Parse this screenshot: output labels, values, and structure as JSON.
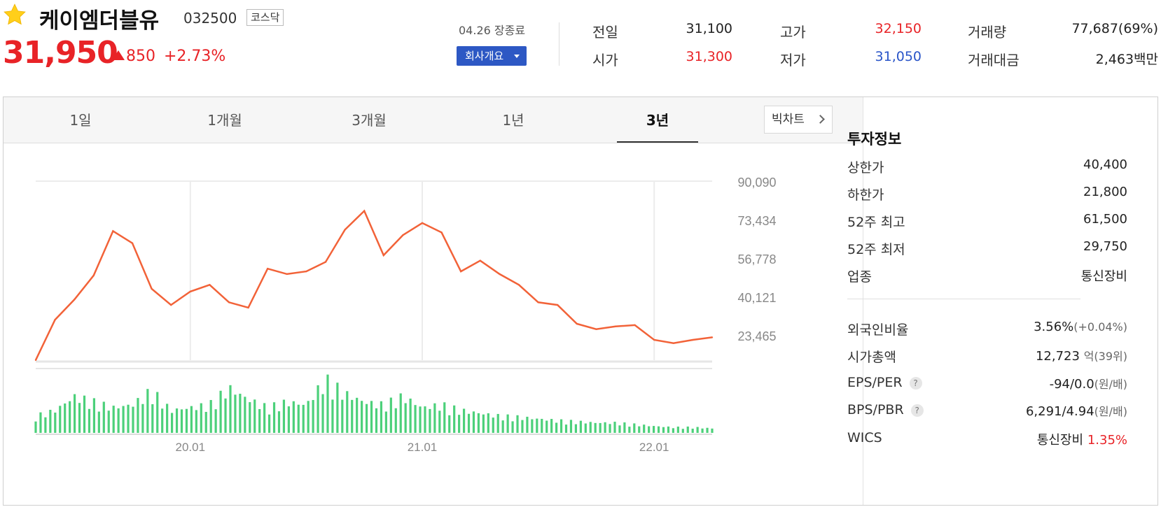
{
  "stock": {
    "name": "케이엠더블유",
    "code": "032500",
    "market": "코스닥",
    "price": "31,950",
    "change": "850",
    "change_pct": "+2.73%",
    "date": "04.26 장종료",
    "company_button": "회사개요",
    "colors": {
      "up": "#e82327",
      "down": "#2a55c8",
      "accent": "#2d58c4"
    }
  },
  "quote": [
    {
      "label": "전일",
      "value": "31,100",
      "tone": "dark"
    },
    {
      "label": "고가",
      "value": "32,150",
      "tone": "red"
    },
    {
      "label": "거래량",
      "value": "77,687(69%)",
      "tone": "dark"
    },
    {
      "label": "시가",
      "value": "31,300",
      "tone": "red"
    },
    {
      "label": "저가",
      "value": "31,050",
      "tone": "blue"
    },
    {
      "label": "거래대금",
      "value": "2,463백만",
      "tone": "dark"
    }
  ],
  "tabs": [
    "1일",
    "1개월",
    "3개월",
    "1년",
    "3년"
  ],
  "active_tab": "3년",
  "bigchart_label": "빅차트",
  "invest": {
    "title": "투자정보",
    "rows": [
      {
        "label": "상한가",
        "value": "40,400",
        "tone": "red"
      },
      {
        "label": "하한가",
        "value": "21,800",
        "tone": "blue"
      },
      {
        "label": "52주 최고",
        "value": "61,500",
        "tone": "dark"
      },
      {
        "label": "52주 최저",
        "value": "29,750",
        "tone": "dark"
      },
      {
        "label": "업종",
        "value": "통신장비",
        "tone": "dark"
      }
    ],
    "foreign_label": "외국인비율",
    "foreign_value": "3.56%",
    "foreign_change": "(+0.04%)",
    "mcap_label": "시가총액",
    "mcap_value": "12,723",
    "mcap_unit": "억",
    "mcap_rank": "(39위)",
    "eps_label": "EPS/PER",
    "eps_value": "-94/0.0",
    "eps_unit": "(원/배)",
    "bps_label": "BPS/PBR",
    "bps_value": "6,291/4.94",
    "bps_unit": "(원/배)",
    "wics_label": "WICS",
    "wics_value": "통신장비",
    "wics_pct": "1.35%",
    "help_glyph": "?"
  },
  "chart_data": {
    "type": "line",
    "title": "",
    "xlabel": "",
    "ylabel": "",
    "x": [
      "19.05",
      "19.06",
      "19.07",
      "19.08",
      "19.09",
      "19.10",
      "19.11",
      "19.12",
      "20.01",
      "20.02",
      "20.03",
      "20.04",
      "20.05",
      "20.06",
      "20.07",
      "20.08",
      "20.09",
      "20.10",
      "20.11",
      "20.12",
      "21.01",
      "21.02",
      "21.03",
      "21.04",
      "21.05",
      "21.06",
      "21.07",
      "21.08",
      "21.09",
      "21.10",
      "21.11",
      "21.12",
      "22.01",
      "22.02",
      "22.03",
      "22.04"
    ],
    "series": [
      {
        "values": [
          23500,
          38500,
          46000,
          55000,
          71500,
          67000,
          50000,
          44000,
          49000,
          51500,
          45000,
          43000,
          57500,
          55500,
          56500,
          60000,
          72000,
          79000,
          62500,
          70000,
          74500,
          71000,
          56500,
          60500,
          55500,
          51500,
          45000,
          44000,
          37000,
          35000,
          36000,
          36500,
          31000,
          29800,
          31000,
          31950
        ]
      }
    ],
    "volume": [
      30,
      40,
      65,
      55,
      45,
      50,
      75,
      40,
      45,
      50,
      80,
      60,
      45,
      55,
      50,
      95,
      70,
      55,
      50,
      65,
      45,
      50,
      40,
      35,
      30,
      28,
      25,
      22,
      20,
      18,
      18,
      15,
      12,
      10,
      10,
      8
    ],
    "y_ticks": [
      "90,090",
      "73,434",
      "56,778",
      "40,121",
      "23,465"
    ],
    "x_ticks": [
      "20.01",
      "21.01",
      "22.01"
    ],
    "ylim": [
      23465,
      90090
    ],
    "grid": true,
    "line_color": "#f26238",
    "volume_color": "#4cd07a"
  }
}
